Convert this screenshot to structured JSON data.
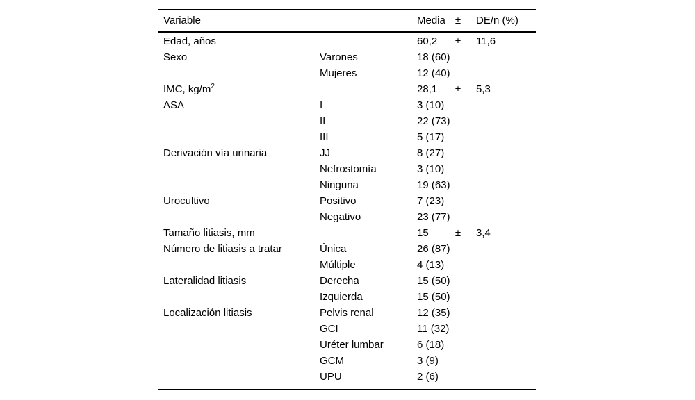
{
  "page": {
    "background": "#ffffff",
    "text_color": "#000000"
  },
  "table": {
    "header": {
      "variable": "Variable",
      "media": "Media",
      "pm": "±",
      "de": "DE/n (%)"
    },
    "rows": [
      {
        "variable": "Edad, años",
        "sup": "",
        "category": "",
        "value": "60,2",
        "pm": "±",
        "sd": "11,6"
      },
      {
        "variable": "Sexo",
        "sup": "",
        "category": "Varones",
        "value": "18 (60)",
        "pm": "",
        "sd": ""
      },
      {
        "variable": "",
        "sup": "",
        "category": "Mujeres",
        "value": "12 (40)",
        "pm": "",
        "sd": ""
      },
      {
        "variable": "IMC, kg/m",
        "sup": "2",
        "category": "",
        "value": "28,1",
        "pm": "±",
        "sd": "5,3"
      },
      {
        "variable": "ASA",
        "sup": "",
        "category": "I",
        "value": "3 (10)",
        "pm": "",
        "sd": ""
      },
      {
        "variable": "",
        "sup": "",
        "category": "II",
        "value": "22 (73)",
        "pm": "",
        "sd": ""
      },
      {
        "variable": "",
        "sup": "",
        "category": "III",
        "value": "5 (17)",
        "pm": "",
        "sd": ""
      },
      {
        "variable": "Derivación vía urinaria",
        "sup": "",
        "category": "JJ",
        "value": "8 (27)",
        "pm": "",
        "sd": ""
      },
      {
        "variable": "",
        "sup": "",
        "category": "Nefrostomía",
        "value": "3 (10)",
        "pm": "",
        "sd": ""
      },
      {
        "variable": "",
        "sup": "",
        "category": "Ninguna",
        "value": "19 (63)",
        "pm": "",
        "sd": ""
      },
      {
        "variable": "Urocultivo",
        "sup": "",
        "category": "Positivo",
        "value": "7 (23)",
        "pm": "",
        "sd": ""
      },
      {
        "variable": "",
        "sup": "",
        "category": "Negativo",
        "value": "23 (77)",
        "pm": "",
        "sd": ""
      },
      {
        "variable": "Tamaño litiasis, mm",
        "sup": "",
        "category": "",
        "value": "15",
        "pm": "±",
        "sd": "3,4"
      },
      {
        "variable": "Número de litiasis a tratar",
        "sup": "",
        "category": "Única",
        "value": "26 (87)",
        "pm": "",
        "sd": ""
      },
      {
        "variable": "",
        "sup": "",
        "category": "Múltiple",
        "value": "4 (13)",
        "pm": "",
        "sd": ""
      },
      {
        "variable": "Lateralidad litiasis",
        "sup": "",
        "category": "Derecha",
        "value": "15 (50)",
        "pm": "",
        "sd": ""
      },
      {
        "variable": "",
        "sup": "",
        "category": "Izquierda",
        "value": "15 (50)",
        "pm": "",
        "sd": ""
      },
      {
        "variable": "Localización litiasis",
        "sup": "",
        "category": "Pelvis renal",
        "value": "12 (35)",
        "pm": "",
        "sd": ""
      },
      {
        "variable": "",
        "sup": "",
        "category": "GCI",
        "value": "11 (32)",
        "pm": "",
        "sd": ""
      },
      {
        "variable": "",
        "sup": "",
        "category": "Uréter lumbar",
        "value": "6 (18)",
        "pm": "",
        "sd": ""
      },
      {
        "variable": "",
        "sup": "",
        "category": "GCM",
        "value": "3 (9)",
        "pm": "",
        "sd": ""
      },
      {
        "variable": "",
        "sup": "",
        "category": "UPU",
        "value": "2 (6)",
        "pm": "",
        "sd": ""
      }
    ]
  }
}
